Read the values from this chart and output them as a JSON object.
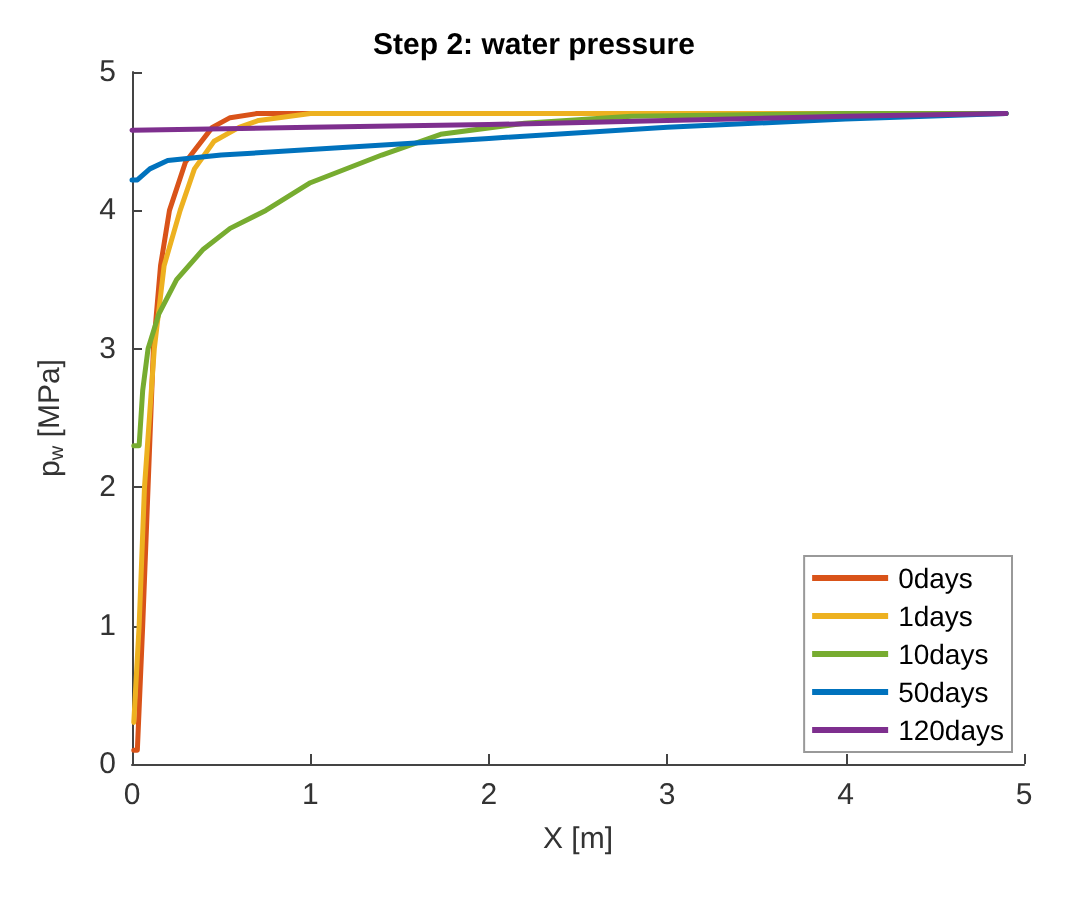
{
  "chart_data": {
    "type": "line",
    "title": "Step 2: water pressure",
    "xlabel": "X [m]",
    "ylabel": "p$_{w}$ [MPa]",
    "xlim": [
      0,
      5
    ],
    "xticks": [
      0,
      1,
      2,
      3,
      4,
      5
    ],
    "ylim": [
      0,
      5
    ],
    "yticks": [
      0,
      1,
      2,
      3,
      4,
      5
    ],
    "grid": false,
    "legend": "bottom right",
    "marker": "none",
    "line_style": "solid",
    "series": [
      {
        "name": "0days",
        "color": "#d95319",
        "x": [
          0.01,
          0.03,
          0.06,
          0.09,
          0.12,
          0.16,
          0.21,
          0.3,
          0.45,
          0.55,
          0.7,
          1,
          2
        ],
        "values": [
          0.1,
          0.1,
          1,
          2,
          3,
          3.6,
          4,
          4.35,
          4.6,
          4.67,
          4.7,
          4.7,
          4.7
        ]
      },
      {
        "name": "1days",
        "color": "#edb120",
        "x": [
          0.01,
          0.04,
          0.07,
          0.125,
          0.18,
          0.27,
          0.35,
          0.46,
          0.6,
          0.71,
          1,
          2,
          3,
          4,
          4.9
        ],
        "values": [
          0.3,
          1,
          2,
          3,
          3.6,
          4,
          4.3,
          4.5,
          4.6,
          4.65,
          4.7,
          4.7,
          4.7,
          4.7,
          4.7
        ]
      },
      {
        "name": "10days",
        "color": "#77ac30",
        "x": [
          0.01,
          0.04,
          0.06,
          0.09,
          0.15,
          0.25,
          0.4,
          0.55,
          0.75,
          1,
          1.4,
          1.73,
          2.2,
          2.8,
          4,
          4.9
        ],
        "values": [
          2.3,
          2.3,
          2.7,
          3,
          3.25,
          3.5,
          3.72,
          3.87,
          4,
          4.2,
          4.4,
          4.55,
          4.63,
          4.68,
          4.7,
          4.7
        ]
      },
      {
        "name": "50days",
        "color": "#0072bd",
        "x": [
          0,
          0.03,
          0.1,
          0.2,
          0.5,
          1,
          2,
          3,
          4,
          4.9
        ],
        "values": [
          4.22,
          4.22,
          4.3,
          4.36,
          4.4,
          4.44,
          4.52,
          4.6,
          4.66,
          4.7
        ]
      },
      {
        "name": "120days",
        "color": "#7e2f8e",
        "x": [
          0,
          1,
          2,
          3,
          4,
          4.9
        ],
        "values": [
          4.58,
          4.6,
          4.62,
          4.65,
          4.68,
          4.7
        ]
      }
    ]
  }
}
